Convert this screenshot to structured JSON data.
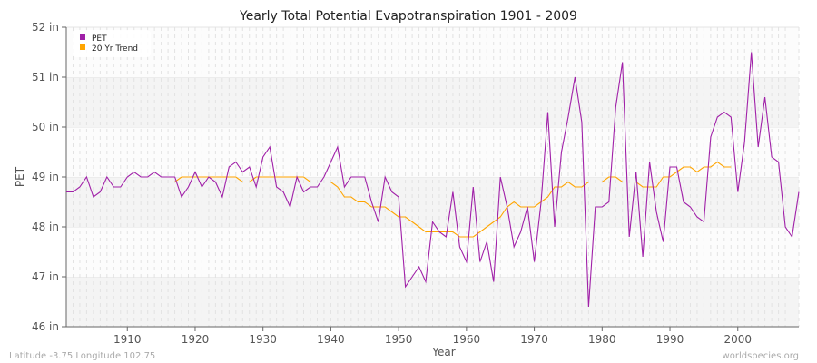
{
  "chart_data": {
    "type": "line",
    "title": "Yearly Total Potential Evapotranspiration 1901 - 2009",
    "xlabel": "Year",
    "ylabel": "PET",
    "xlim": [
      1901,
      2009
    ],
    "ylim": [
      46,
      52
    ],
    "x_ticks": [
      1910,
      1920,
      1930,
      1940,
      1950,
      1960,
      1970,
      1980,
      1990,
      2000
    ],
    "y_ticks": [
      46,
      47,
      48,
      49,
      50,
      51,
      52
    ],
    "y_tick_labels": [
      "46 in",
      "47 in",
      "48 in",
      "49 in",
      "50 in",
      "51 in",
      "52 in"
    ],
    "grid": true,
    "legend_placement": "top-left",
    "series": [
      {
        "name": "PET",
        "color": "#a020a8",
        "x_start": 1901,
        "values": [
          48.7,
          48.7,
          48.8,
          49.0,
          48.6,
          48.7,
          49.0,
          48.8,
          48.8,
          49.0,
          49.1,
          49.0,
          49.0,
          49.1,
          49.0,
          49.0,
          49.0,
          48.6,
          48.8,
          49.1,
          48.8,
          49.0,
          48.9,
          48.6,
          49.2,
          49.3,
          49.1,
          49.2,
          48.8,
          49.4,
          49.6,
          48.8,
          48.7,
          48.4,
          49.0,
          48.7,
          48.8,
          48.8,
          49.0,
          49.3,
          49.6,
          48.8,
          49.0,
          49.0,
          49.0,
          48.5,
          48.1,
          49.0,
          48.7,
          48.6,
          46.8,
          47.0,
          47.2,
          46.9,
          48.1,
          47.9,
          47.8,
          48.7,
          47.6,
          47.3,
          48.8,
          47.3,
          47.7,
          46.9,
          49.0,
          48.4,
          47.6,
          47.9,
          48.4,
          47.3,
          48.5,
          50.3,
          48.0,
          49.5,
          50.2,
          51.0,
          50.1,
          46.4,
          48.4,
          48.4,
          48.5,
          50.4,
          51.3,
          47.8,
          49.1,
          47.4,
          49.3,
          48.3,
          47.7,
          49.2,
          49.2,
          48.5,
          48.4,
          48.2,
          48.1,
          49.8,
          50.2,
          50.3,
          50.2,
          48.7,
          49.7,
          51.5,
          49.6,
          50.6,
          49.4,
          49.3,
          48.0,
          47.8,
          48.7
        ]
      },
      {
        "name": "20 Yr Trend",
        "color": "#ffa500",
        "x_start": 1911,
        "values": [
          48.9,
          48.9,
          48.9,
          48.9,
          48.9,
          48.9,
          48.9,
          49.0,
          49.0,
          49.0,
          49.0,
          49.0,
          49.0,
          49.0,
          49.0,
          49.0,
          48.9,
          48.9,
          49.0,
          49.0,
          49.0,
          49.0,
          49.0,
          49.0,
          49.0,
          49.0,
          48.9,
          48.9,
          48.9,
          48.9,
          48.8,
          48.6,
          48.6,
          48.5,
          48.5,
          48.4,
          48.4,
          48.4,
          48.3,
          48.2,
          48.2,
          48.1,
          48.0,
          47.9,
          47.9,
          47.9,
          47.9,
          47.9,
          47.8,
          47.8,
          47.8,
          47.9,
          48.0,
          48.1,
          48.2,
          48.4,
          48.5,
          48.4,
          48.4,
          48.4,
          48.5,
          48.6,
          48.8,
          48.8,
          48.9,
          48.8,
          48.8,
          48.9,
          48.9,
          48.9,
          49.0,
          49.0,
          48.9,
          48.9,
          48.9,
          48.8,
          48.8,
          48.8,
          49.0,
          49.0,
          49.1,
          49.2,
          49.2,
          49.1,
          49.2,
          49.2,
          49.3,
          49.2,
          49.2
        ]
      }
    ]
  },
  "footer": {
    "location": "Latitude -3.75 Longitude 102.75",
    "source": "worldspecies.org"
  }
}
